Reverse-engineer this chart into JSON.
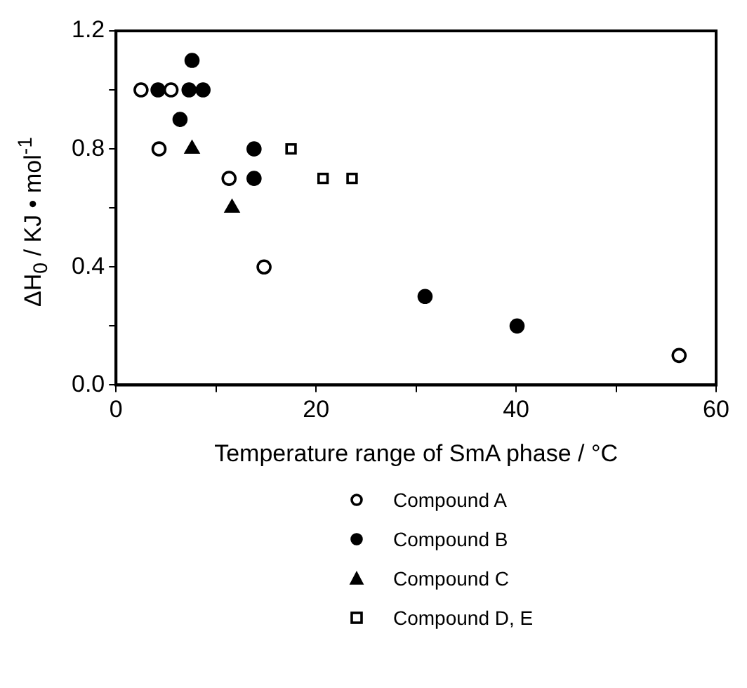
{
  "chart_data": {
    "type": "scatter",
    "xlabel": "Temperature range of SmA phase / °C",
    "ylabel": "ΔH$_{0}$ / KJ • mol$^{-1}$",
    "xlim": [
      0,
      60
    ],
    "xticks": [
      0,
      {
        "value": 10,
        "label": null
      },
      20,
      {
        "value": 30,
        "label": null
      },
      40,
      {
        "value": 50,
        "label": null
      },
      60
    ],
    "ylim": [
      0,
      1.2
    ],
    "yticks": [
      {
        "value": 0,
        "label": "0.0"
      },
      {
        "value": 0.2,
        "label": null
      },
      0.4,
      {
        "value": 0.6,
        "label": null
      },
      0.8,
      {
        "value": 1,
        "label": null
      },
      1.2
    ],
    "grid": false,
    "legend": "bottom",
    "series": [
      {
        "name": "Compound A",
        "color": "#ffffff",
        "marker": "circle",
        "x": [
          2.5,
          5.5,
          4.3,
          11.3,
          14.8,
          56.3
        ],
        "values": [
          1.0,
          1.0,
          0.8,
          0.7,
          0.4,
          0.1
        ]
      },
      {
        "name": "Compound B",
        "color": "#000000",
        "marker": "circle",
        "x": [
          4.2,
          7.6,
          7.3,
          8.7,
          6.4,
          13.8,
          13.8,
          30.9,
          40.1
        ],
        "values": [
          1.0,
          1.1,
          1.0,
          1.0,
          0.9,
          0.8,
          0.7,
          0.3,
          0.2
        ]
      },
      {
        "name": "Compound C",
        "color": "#000000",
        "marker": "triangle",
        "x": [
          7.6,
          11.6
        ],
        "values": [
          0.8,
          0.6
        ]
      },
      {
        "name": "Compound D, E",
        "color": "#ffffff",
        "marker": "square",
        "x": [
          17.5,
          20.7,
          23.6
        ],
        "values": [
          0.8,
          0.7,
          0.7
        ]
      }
    ]
  }
}
